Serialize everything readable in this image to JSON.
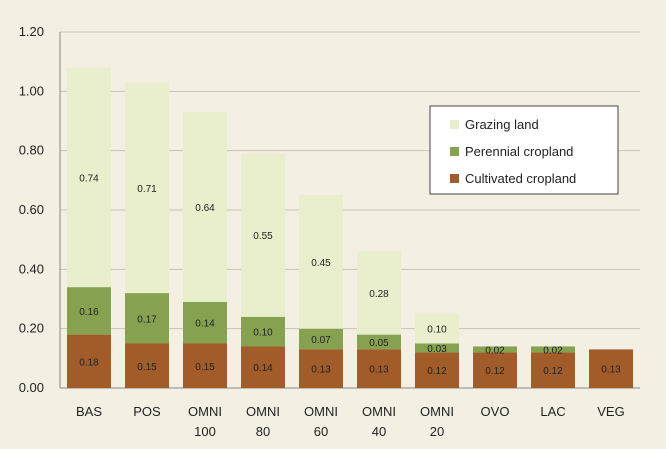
{
  "chart_data": {
    "type": "bar",
    "stacked": true,
    "title": "",
    "xlabel": "",
    "ylabel": "",
    "ylim": [
      0,
      1.2
    ],
    "yticks": [
      "0.00",
      "0.20",
      "0.40",
      "0.60",
      "0.80",
      "1.00",
      "1.20"
    ],
    "grid": true,
    "legend_position": "right",
    "categories": [
      [
        "BAS"
      ],
      [
        "POS"
      ],
      [
        "OMNI",
        "100"
      ],
      [
        "OMNI",
        "80"
      ],
      [
        "OMNI",
        "60"
      ],
      [
        "OMNI",
        "40"
      ],
      [
        "OMNI",
        "20"
      ],
      [
        "OVO"
      ],
      [
        "LAC"
      ],
      [
        "VEG"
      ]
    ],
    "series": [
      {
        "name": "Cultivated cropland",
        "color": "#a15c2a",
        "values": [
          0.18,
          0.15,
          0.15,
          0.14,
          0.13,
          0.13,
          0.12,
          0.12,
          0.12,
          0.13
        ],
        "labels": [
          "0.18",
          "0.15",
          "0.15",
          "0.14",
          "0.13",
          "0.13",
          "0.12",
          "0.12",
          "0.12",
          "0.13"
        ]
      },
      {
        "name": "Perennial cropland",
        "color": "#86a251",
        "values": [
          0.16,
          0.17,
          0.14,
          0.1,
          0.07,
          0.05,
          0.03,
          0.02,
          0.02,
          0
        ],
        "labels": [
          "0.16",
          "0.17",
          "0.14",
          "0.10",
          "0.07",
          "0.05",
          "0.03",
          "0.02",
          "0.02",
          ""
        ]
      },
      {
        "name": "Grazing land",
        "color": "#e9eecc",
        "values": [
          0.74,
          0.71,
          0.64,
          0.55,
          0.45,
          0.28,
          0.1,
          0,
          0,
          0
        ],
        "labels": [
          "0.74",
          "0.71",
          "0.64",
          "0.55",
          "0.45",
          "0.28",
          "0.10",
          "",
          "",
          ""
        ]
      }
    ],
    "legend_order": [
      "Grazing land",
      "Perennial cropland",
      "Cultivated cropland"
    ]
  }
}
